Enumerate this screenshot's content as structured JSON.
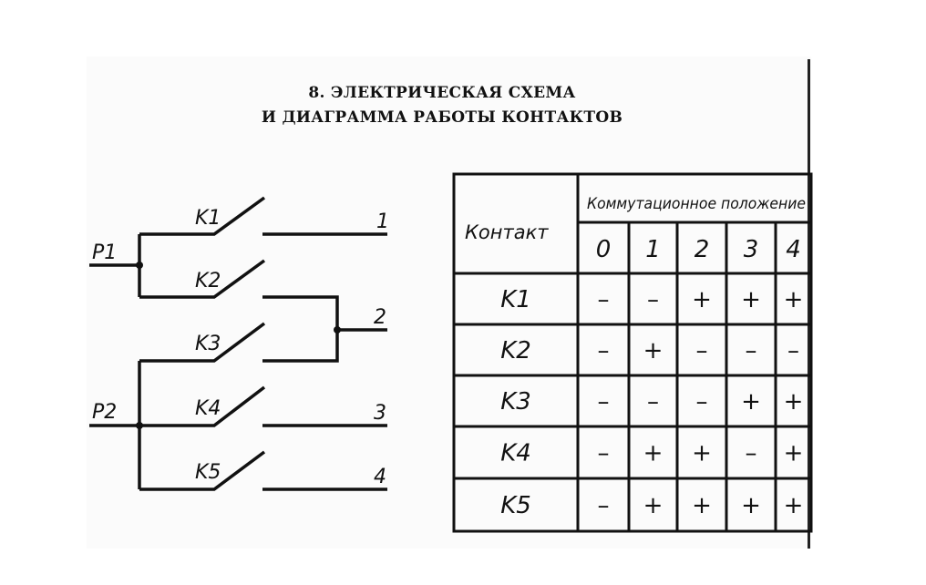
{
  "title": {
    "line1": "8. ЭЛЕКТРИЧЕСКАЯ СХЕМА",
    "line2": "И ДИАГРАММА РАБОТЫ КОНТАКТОВ"
  },
  "schematic": {
    "inputs": [
      "P1",
      "P2"
    ],
    "contacts": [
      "K1",
      "K2",
      "K3",
      "K4",
      "K5"
    ],
    "outputs": [
      "1",
      "2",
      "3",
      "4"
    ]
  },
  "table": {
    "contact_header": "Контакт",
    "position_header": "Коммутационное положение",
    "positions": [
      "0",
      "1",
      "2",
      "3",
      "4"
    ],
    "rows": [
      {
        "contact": "K1",
        "states": [
          "–",
          "–",
          "+",
          "+",
          "+"
        ]
      },
      {
        "contact": "K2",
        "states": [
          "–",
          "+",
          "–",
          "–",
          "–"
        ]
      },
      {
        "contact": "K3",
        "states": [
          "–",
          "–",
          "–",
          "+",
          "+"
        ]
      },
      {
        "contact": "K4",
        "states": [
          "–",
          "+",
          "+",
          "–",
          "+"
        ]
      },
      {
        "contact": "K5",
        "states": [
          "–",
          "+",
          "+",
          "+",
          "+"
        ]
      }
    ]
  }
}
